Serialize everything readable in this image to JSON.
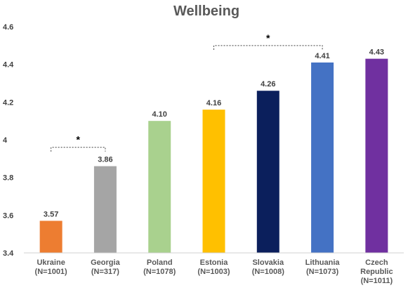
{
  "chart_data": {
    "type": "bar",
    "title": "Wellbeing",
    "xlabel": "",
    "ylabel": "",
    "ylim": [
      3.4,
      4.6
    ],
    "yticks": [
      "3.4",
      "3.6",
      "3.8",
      "4",
      "4.2",
      "4.4",
      "4.6"
    ],
    "yticks_values": [
      3.4,
      3.6,
      3.8,
      4.0,
      4.2,
      4.4,
      4.6
    ],
    "grid": false,
    "legend": "none",
    "categories": [
      [
        "Ukraine",
        "(N=1001)"
      ],
      [
        "Georgia",
        "(N=317)"
      ],
      [
        "Poland",
        "(N=1078)"
      ],
      [
        "Estonia",
        "(N=1003)"
      ],
      [
        "Slovakia",
        "(N=1008)"
      ],
      [
        "Lithuania",
        "(N=1073)"
      ],
      [
        "Czech",
        "Republic",
        "(N=1011)"
      ]
    ],
    "values": [
      3.57,
      3.86,
      4.1,
      4.16,
      4.26,
      4.41,
      4.43
    ],
    "data_labels": [
      "3.57",
      "3.86",
      "4.10",
      "4.16",
      "4.26",
      "4.41",
      "4.43"
    ],
    "colors": [
      "#ED7D31",
      "#A5A5A5",
      "#A9D18E",
      "#FFC000",
      "#0B1F5C",
      "#4472C4",
      "#7030A0"
    ],
    "annotations": [
      {
        "text": "*",
        "from_index": 0,
        "to_index": 1,
        "y": 3.96
      },
      {
        "text": "*",
        "from_index": 3,
        "to_index": 5,
        "y": 4.5
      }
    ]
  }
}
